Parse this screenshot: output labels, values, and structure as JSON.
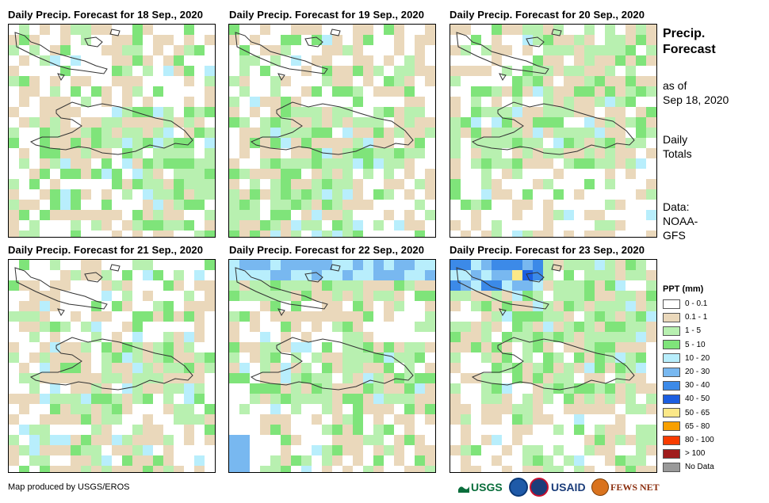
{
  "panels": [
    {
      "title": "Daily Precip. Forecast for 18 Sep., 2020"
    },
    {
      "title": "Daily Precip. Forecast for 19 Sep., 2020"
    },
    {
      "title": "Daily Precip. Forecast for 20 Sep., 2020"
    },
    {
      "title": "Daily Precip. Forecast for 21 Sep., 2020"
    },
    {
      "title": "Daily Precip. Forecast for 22 Sep., 2020"
    },
    {
      "title": "Daily Precip. Forecast for 23 Sep., 2020"
    }
  ],
  "side": {
    "title_line1": "Precip.",
    "title_line2": "Forecast",
    "asof_line1": "as of",
    "asof_line2": "Sep 18, 2020",
    "daily_line1": "Daily",
    "daily_line2": "Totals",
    "data_line1": "Data:",
    "data_line2": "NOAA-",
    "data_line3": "GFS"
  },
  "legend": {
    "title": "PPT (mm)",
    "items": [
      {
        "label": "0 - 0.1",
        "color": "#ffffff"
      },
      {
        "label": "0.1 - 1",
        "color": "#ead8bb"
      },
      {
        "label": "1 - 5",
        "color": "#b8f0b0"
      },
      {
        "label": "5 - 10",
        "color": "#7fe47a"
      },
      {
        "label": "10 - 20",
        "color": "#b8eefc"
      },
      {
        "label": "20 - 30",
        "color": "#78b8f0"
      },
      {
        "label": "30 - 40",
        "color": "#3c8ae8"
      },
      {
        "label": "40 - 50",
        "color": "#1c5ee0"
      },
      {
        "label": "50 - 65",
        "color": "#fce888"
      },
      {
        "label": "65 - 80",
        "color": "#f8a000"
      },
      {
        "label": "80 - 100",
        "color": "#f83c00"
      },
      {
        "label": "> 100",
        "color": "#a01c1c"
      },
      {
        "label": "No Data",
        "color": "#999999"
      }
    ]
  },
  "credit": "Map produced by USGS/EROS",
  "logos": {
    "usgs": "USGS",
    "noaa": "NOAA",
    "usaid": "USAID",
    "fewsnet": "FEWS NET"
  }
}
